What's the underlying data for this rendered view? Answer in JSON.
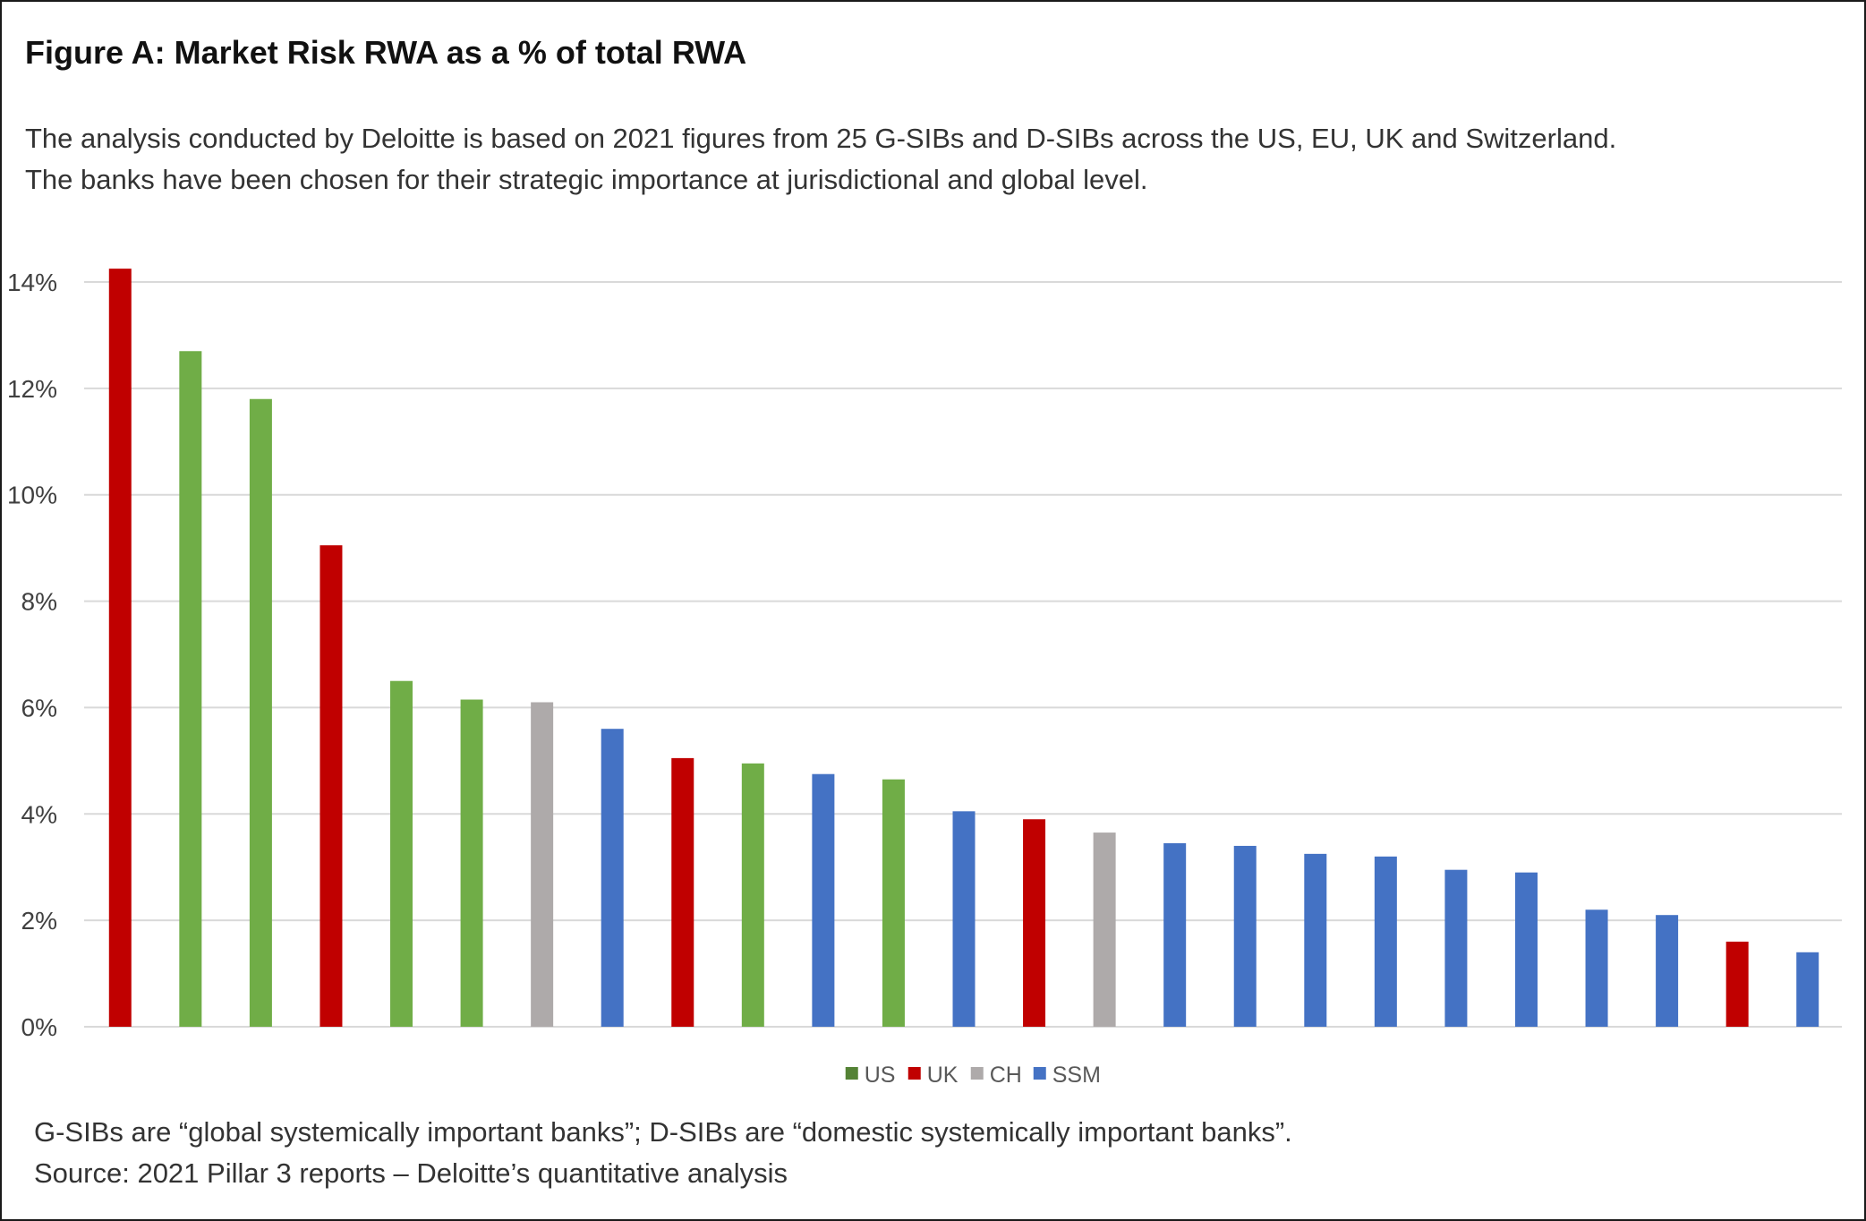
{
  "title": "Figure A: Market Risk RWA as a % of total RWA",
  "subtitle": {
    "line1": "The analysis conducted by Deloitte is based on 2021 figures from 25 G-SIBs and D-SIBs across the US, EU, UK and Switzerland.",
    "line2": "The banks have been chosen for their strategic importance at jurisdictional and global level."
  },
  "footnote": {
    "line1": "G-SIBs are “global systemically important banks”; D-SIBs are “domestic systemically important banks”.",
    "line2": "Source: 2021 Pillar 3 reports – Deloitte’s quantitative analysis"
  },
  "colors": {
    "US": "#70AD47",
    "UK": "#C00000",
    "CH": "#AEAAAA",
    "SSM": "#4472C4",
    "US_legend": "#548235",
    "gridline": "#D9D9D9",
    "axis_label": "#404040"
  },
  "chart_data": {
    "type": "bar",
    "title": "",
    "xlabel": "",
    "ylabel": "",
    "ylim": [
      0,
      14
    ],
    "yticks": [
      0,
      2,
      4,
      6,
      8,
      10,
      12,
      14
    ],
    "ytick_labels": [
      "0%",
      "2%",
      "4%",
      "6%",
      "8%",
      "10%",
      "12%",
      "14%"
    ],
    "grid": true,
    "legend_position": "bottom",
    "legend": [
      "US",
      "UK",
      "CH",
      "SSM"
    ],
    "bars": [
      {
        "group": "UK",
        "value": 14.25
      },
      {
        "group": "US",
        "value": 12.7
      },
      {
        "group": "US",
        "value": 11.8
      },
      {
        "group": "UK",
        "value": 9.05
      },
      {
        "group": "US",
        "value": 6.5
      },
      {
        "group": "US",
        "value": 6.15
      },
      {
        "group": "CH",
        "value": 6.1
      },
      {
        "group": "SSM",
        "value": 5.6
      },
      {
        "group": "UK",
        "value": 5.05
      },
      {
        "group": "US",
        "value": 4.95
      },
      {
        "group": "SSM",
        "value": 4.75
      },
      {
        "group": "US",
        "value": 4.65
      },
      {
        "group": "SSM",
        "value": 4.05
      },
      {
        "group": "UK",
        "value": 3.9
      },
      {
        "group": "CH",
        "value": 3.65
      },
      {
        "group": "SSM",
        "value": 3.45
      },
      {
        "group": "SSM",
        "value": 3.4
      },
      {
        "group": "SSM",
        "value": 3.25
      },
      {
        "group": "SSM",
        "value": 3.2
      },
      {
        "group": "SSM",
        "value": 2.95
      },
      {
        "group": "SSM",
        "value": 2.9
      },
      {
        "group": "SSM",
        "value": 2.2
      },
      {
        "group": "SSM",
        "value": 2.1
      },
      {
        "group": "UK",
        "value": 1.6
      },
      {
        "group": "SSM",
        "value": 1.4
      }
    ]
  }
}
